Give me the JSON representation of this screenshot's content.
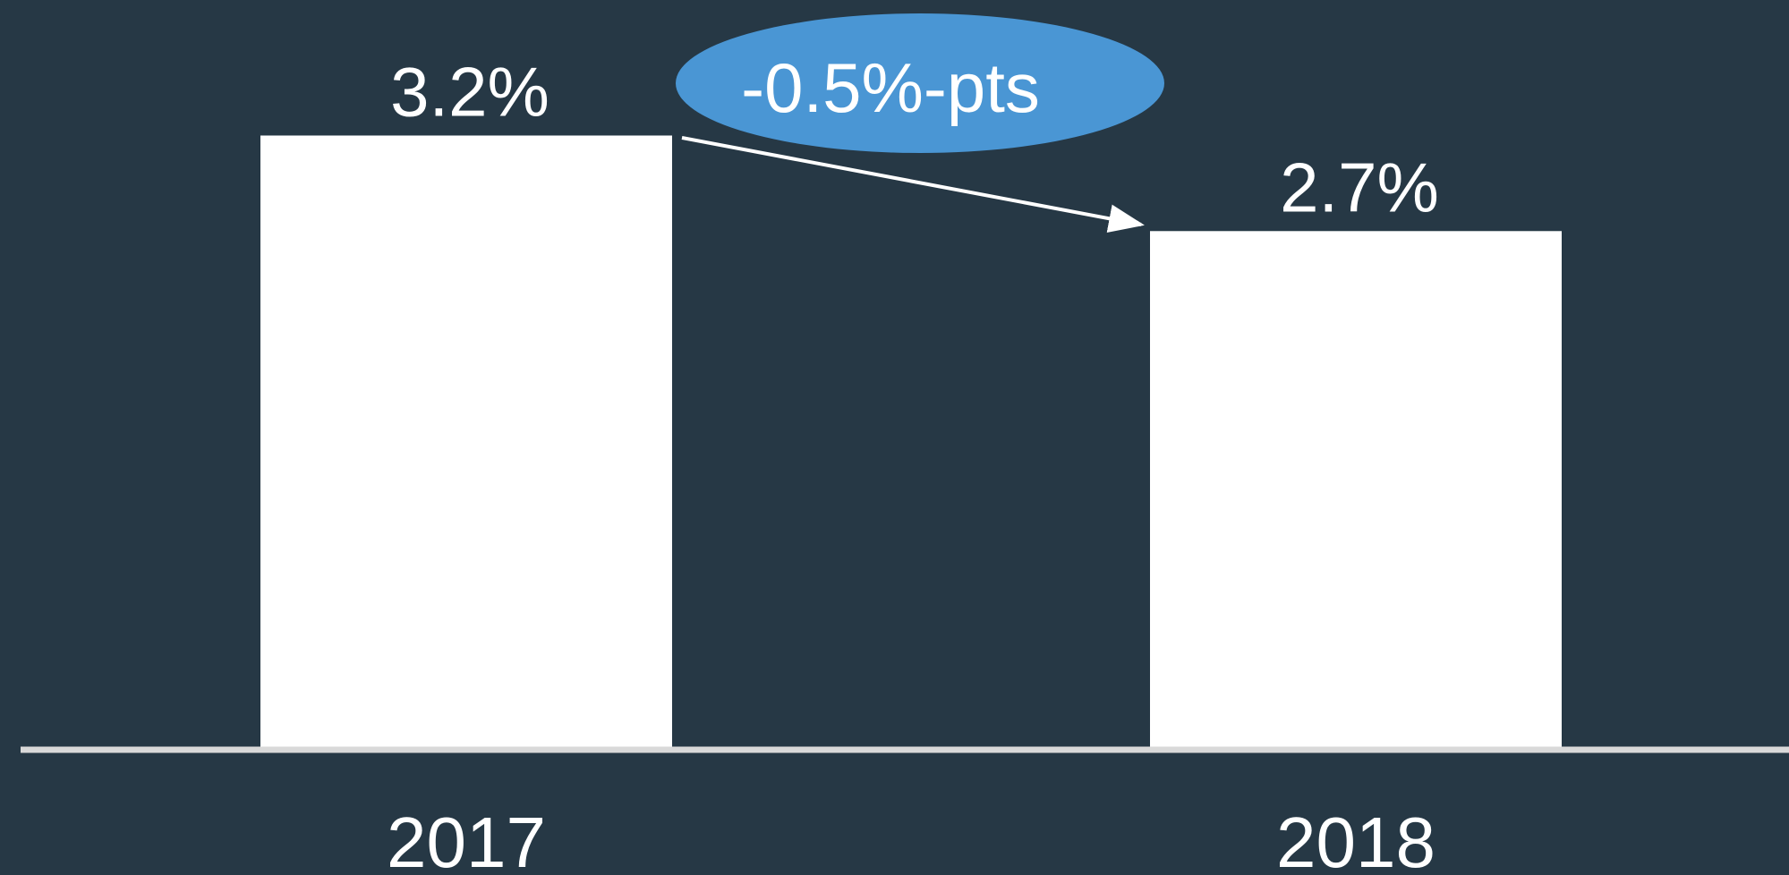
{
  "chart_data": {
    "type": "bar",
    "categories": [
      "2017",
      "2018"
    ],
    "values": [
      3.2,
      2.7
    ],
    "value_labels": [
      "3.2%",
      "2.7%"
    ],
    "color": "#ffffff",
    "annotation": "-0.5%-pts"
  }
}
